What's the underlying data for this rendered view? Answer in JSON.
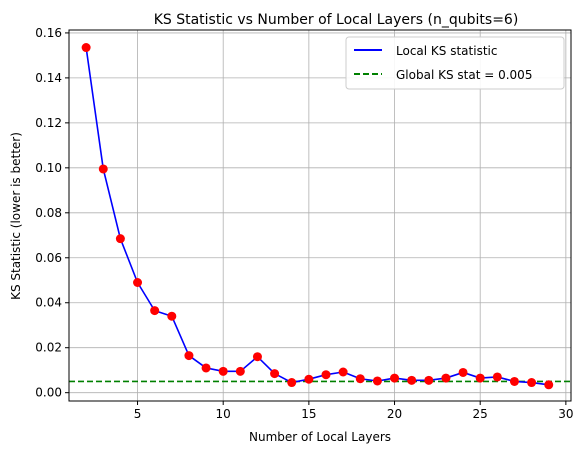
{
  "chart_data": {
    "type": "line",
    "title": "KS Statistic vs Number of Local Layers (n_qubits=6)",
    "xlabel": "Number of Local Layers",
    "ylabel": "KS Statistic (lower is better)",
    "xlim": [
      1.0,
      30.3
    ],
    "ylim": [
      -0.0037,
      0.1613
    ],
    "xticks": [
      5,
      10,
      15,
      20,
      25,
      30
    ],
    "yticks": [
      0.0,
      0.02,
      0.04,
      0.06,
      0.08,
      0.1,
      0.12,
      0.14,
      0.16
    ],
    "ytick_labels": [
      "0.00",
      "0.02",
      "0.04",
      "0.06",
      "0.08",
      "0.10",
      "0.12",
      "0.14",
      "0.16"
    ],
    "grid": true,
    "legend_position": "top-right",
    "x": [
      2,
      3,
      4,
      5,
      6,
      7,
      8,
      9,
      10,
      11,
      12,
      13,
      14,
      15,
      16,
      17,
      18,
      19,
      20,
      21,
      22,
      23,
      24,
      25,
      26,
      27,
      28,
      29
    ],
    "series": [
      {
        "name": "Local KS statistic",
        "style": "solid",
        "line_color": "#0000ff",
        "marker_color": "#ff0000",
        "values": [
          0.1535,
          0.0995,
          0.0685,
          0.049,
          0.0365,
          0.034,
          0.0165,
          0.011,
          0.0095,
          0.0095,
          0.016,
          0.0085,
          0.0045,
          0.006,
          0.008,
          0.0092,
          0.0062,
          0.0052,
          0.0065,
          0.0055,
          0.0055,
          0.0065,
          0.009,
          0.0065,
          0.007,
          0.005,
          0.0045,
          0.0035
        ]
      }
    ],
    "reference_lines": [
      {
        "name": "Global KS stat = 0.005",
        "orientation": "horizontal",
        "value": 0.005,
        "style": "dashed",
        "color": "#008000"
      }
    ]
  }
}
